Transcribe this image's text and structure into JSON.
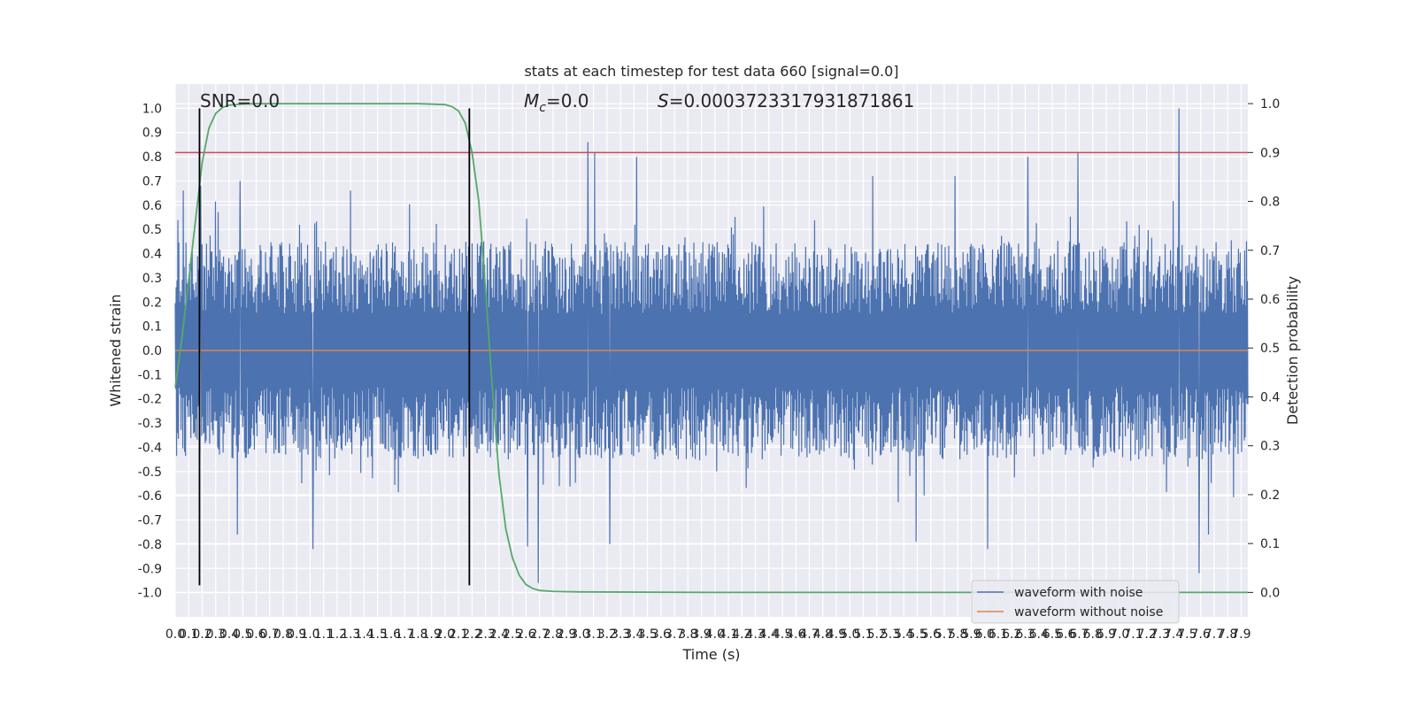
{
  "chart_data": {
    "type": "line",
    "title": "stats at each timestep for test data 660 [signal=0.0]",
    "xlabel": "Time (s)",
    "ylabel": "Whitened strain",
    "ylabel_right": "Detection probability",
    "xlim": [
      0.0,
      7.95
    ],
    "ylim": [
      -1.1,
      1.1
    ],
    "ylim_right": [
      -0.05,
      1.04
    ],
    "x_ticks": [
      0.0,
      0.1,
      0.2,
      0.3,
      0.4,
      0.5,
      0.6,
      0.7,
      0.8,
      0.9,
      1.0,
      1.1,
      1.2,
      1.3,
      1.4,
      1.5,
      1.6,
      1.7,
      1.8,
      1.9,
      2.0,
      2.1,
      2.2,
      2.3,
      2.4,
      2.5,
      2.6,
      2.7,
      2.8,
      2.9,
      3.0,
      3.1,
      3.2,
      3.3,
      3.4,
      3.5,
      3.6,
      3.7,
      3.8,
      3.9,
      4.0,
      4.1,
      4.2,
      4.3,
      4.4,
      4.5,
      4.6,
      4.7,
      4.8,
      4.9,
      5.0,
      5.1,
      5.2,
      5.3,
      5.4,
      5.5,
      5.6,
      5.7,
      5.8,
      5.9,
      6.0,
      6.1,
      6.2,
      6.3,
      6.4,
      6.5,
      6.6,
      6.7,
      6.8,
      6.9,
      7.0,
      7.1,
      7.2,
      7.3,
      7.4,
      7.5,
      7.6,
      7.7,
      7.8,
      7.9
    ],
    "y_ticks": [
      -1.0,
      -0.9,
      -0.8,
      -0.7,
      -0.6,
      -0.5,
      -0.4,
      -0.3,
      -0.2,
      -0.1,
      0.0,
      0.1,
      0.2,
      0.3,
      0.4,
      0.5,
      0.6,
      0.7,
      0.8,
      0.9,
      1.0
    ],
    "y_ticks_right": [
      0.0,
      0.1,
      0.2,
      0.3,
      0.4,
      0.5,
      0.6,
      0.7,
      0.8,
      0.9,
      1.0
    ],
    "grid": true,
    "legend_position": "bottom-right",
    "series": [
      {
        "name": "waveform with noise",
        "color": "#4c72b0",
        "kind": "dense-noise",
        "typical_range": [
          -0.45,
          0.45
        ],
        "peaks": [
          {
            "x": 0.06,
            "y": 0.66
          },
          {
            "x": 0.19,
            "y": 0.68
          },
          {
            "x": 0.48,
            "y": 0.7
          },
          {
            "x": 1.3,
            "y": 0.66
          },
          {
            "x": 3.06,
            "y": 0.86
          },
          {
            "x": 3.11,
            "y": 0.82
          },
          {
            "x": 3.42,
            "y": 0.8
          },
          {
            "x": 5.17,
            "y": 0.72
          },
          {
            "x": 6.32,
            "y": 0.8
          },
          {
            "x": 6.69,
            "y": 0.82
          },
          {
            "x": 7.44,
            "y": 1.0
          },
          {
            "x": 5.78,
            "y": 0.72
          }
        ],
        "troughs": [
          {
            "x": 0.46,
            "y": -0.76
          },
          {
            "x": 1.02,
            "y": -0.82
          },
          {
            "x": 2.69,
            "y": -0.96
          },
          {
            "x": 2.61,
            "y": -0.81
          },
          {
            "x": 3.22,
            "y": -0.8
          },
          {
            "x": 5.49,
            "y": -0.79
          },
          {
            "x": 6.02,
            "y": -0.82
          },
          {
            "x": 7.59,
            "y": -0.92
          },
          {
            "x": 7.66,
            "y": -0.76
          }
        ]
      },
      {
        "name": "waveform without noise",
        "color": "#dd8452",
        "constant": 0.0
      },
      {
        "name": "detection-probability",
        "color": "#55a868",
        "axis": "right",
        "x": [
          0.0,
          0.05,
          0.1,
          0.15,
          0.2,
          0.25,
          0.3,
          0.35,
          0.4,
          0.5,
          0.6,
          0.8,
          1.0,
          1.5,
          1.8,
          2.0,
          2.05,
          2.1,
          2.15,
          2.2,
          2.25,
          2.3,
          2.35,
          2.4,
          2.45,
          2.5,
          2.55,
          2.6,
          2.65,
          2.7,
          2.8,
          3.0,
          4.0,
          5.0,
          6.0,
          7.0,
          7.95
        ],
        "y": [
          0.42,
          0.52,
          0.64,
          0.76,
          0.88,
          0.95,
          0.98,
          0.992,
          0.997,
          0.999,
          1.0,
          1.0,
          1.0,
          1.0,
          1.0,
          0.998,
          0.994,
          0.985,
          0.96,
          0.9,
          0.8,
          0.62,
          0.42,
          0.24,
          0.13,
          0.07,
          0.035,
          0.016,
          0.008,
          0.004,
          0.002,
          0.001,
          0.0,
          0.0,
          0.0,
          0.0,
          0.0
        ]
      },
      {
        "name": "threshold",
        "color": "#c44e52",
        "axis": "right",
        "constant": 0.9
      }
    ],
    "vlines": [
      {
        "x": 0.18,
        "ymin": -0.97,
        "ymax": 1.0,
        "color": "#000000"
      },
      {
        "x": 2.18,
        "ymin": -0.97,
        "ymax": 1.0,
        "color": "#000000"
      }
    ],
    "annotations": {
      "snr": "SNR=0.0",
      "mc_symbol": "M",
      "mc_sub": "c",
      "mc_value": "=0.0",
      "s_symbol": "S",
      "s_value": "=0.0003723317931871861"
    },
    "background_color": "#eaeaf2"
  }
}
